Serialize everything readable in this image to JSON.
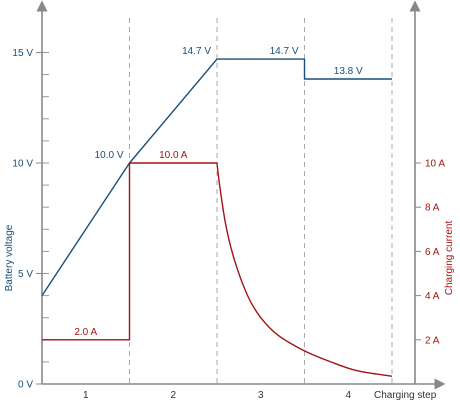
{
  "chart_data": {
    "type": "line",
    "xlabel": "Charging step",
    "ylabel_left": "Battery voltage",
    "ylabel_right": "Charging current",
    "x_range": [
      0,
      4.55
    ],
    "steps": [
      "1",
      "2",
      "3",
      "4"
    ],
    "left_axis": {
      "range": [
        0,
        15.6
      ],
      "major_ticks": [
        0,
        5,
        10,
        15
      ],
      "tick_labels": [
        "0 V",
        "5 V",
        "10 V",
        "15 V"
      ],
      "minor_step": 1
    },
    "right_axis": {
      "range": [
        0,
        15.6
      ],
      "major_ticks": [
        2,
        4,
        6,
        8,
        10
      ],
      "tick_labels": [
        "2 A",
        "4 A",
        "6 A",
        "8 A",
        "10 A"
      ]
    },
    "series": [
      {
        "axis": "left",
        "color": "#1a4e78",
        "points": [
          [
            0,
            4
          ],
          [
            1,
            10
          ],
          [
            2,
            14.7
          ],
          [
            3,
            14.7
          ],
          [
            3,
            13.8
          ],
          [
            4,
            13.8
          ]
        ]
      },
      {
        "axis": "right",
        "color": "#a31414",
        "points": [
          [
            0,
            2
          ],
          [
            1,
            2
          ],
          [
            1,
            10
          ],
          [
            2,
            10
          ],
          [
            2.03,
            9
          ],
          [
            2.1,
            7.2
          ],
          [
            2.2,
            5.6
          ],
          [
            2.35,
            4
          ],
          [
            2.5,
            3
          ],
          [
            2.7,
            2.2
          ],
          [
            3,
            1.5
          ],
          [
            3.3,
            1.0
          ],
          [
            3.6,
            0.6
          ],
          [
            4,
            0.35
          ]
        ]
      }
    ],
    "annotations": [
      {
        "x": 1,
        "y": 10,
        "axis": "left",
        "text": "10.0 V",
        "color": "#1a4e78",
        "anchor": "end"
      },
      {
        "x": 2,
        "y": 14.7,
        "axis": "left",
        "text": "14.7 V",
        "color": "#1a4e78",
        "anchor": "end"
      },
      {
        "x": 3,
        "y": 14.7,
        "axis": "left",
        "text": "14.7 V",
        "color": "#1a4e78",
        "anchor": "end"
      },
      {
        "x": 3.5,
        "y": 13.8,
        "axis": "left",
        "text": "13.8 V",
        "color": "#1a4e78",
        "anchor": "middle"
      },
      {
        "x": 0.5,
        "y": 2,
        "axis": "right",
        "text": "2.0 A",
        "color": "#a31414",
        "anchor": "middle"
      },
      {
        "x": 1.5,
        "y": 10,
        "axis": "right",
        "text": "10.0 A",
        "color": "#a31414",
        "anchor": "middle"
      }
    ]
  }
}
